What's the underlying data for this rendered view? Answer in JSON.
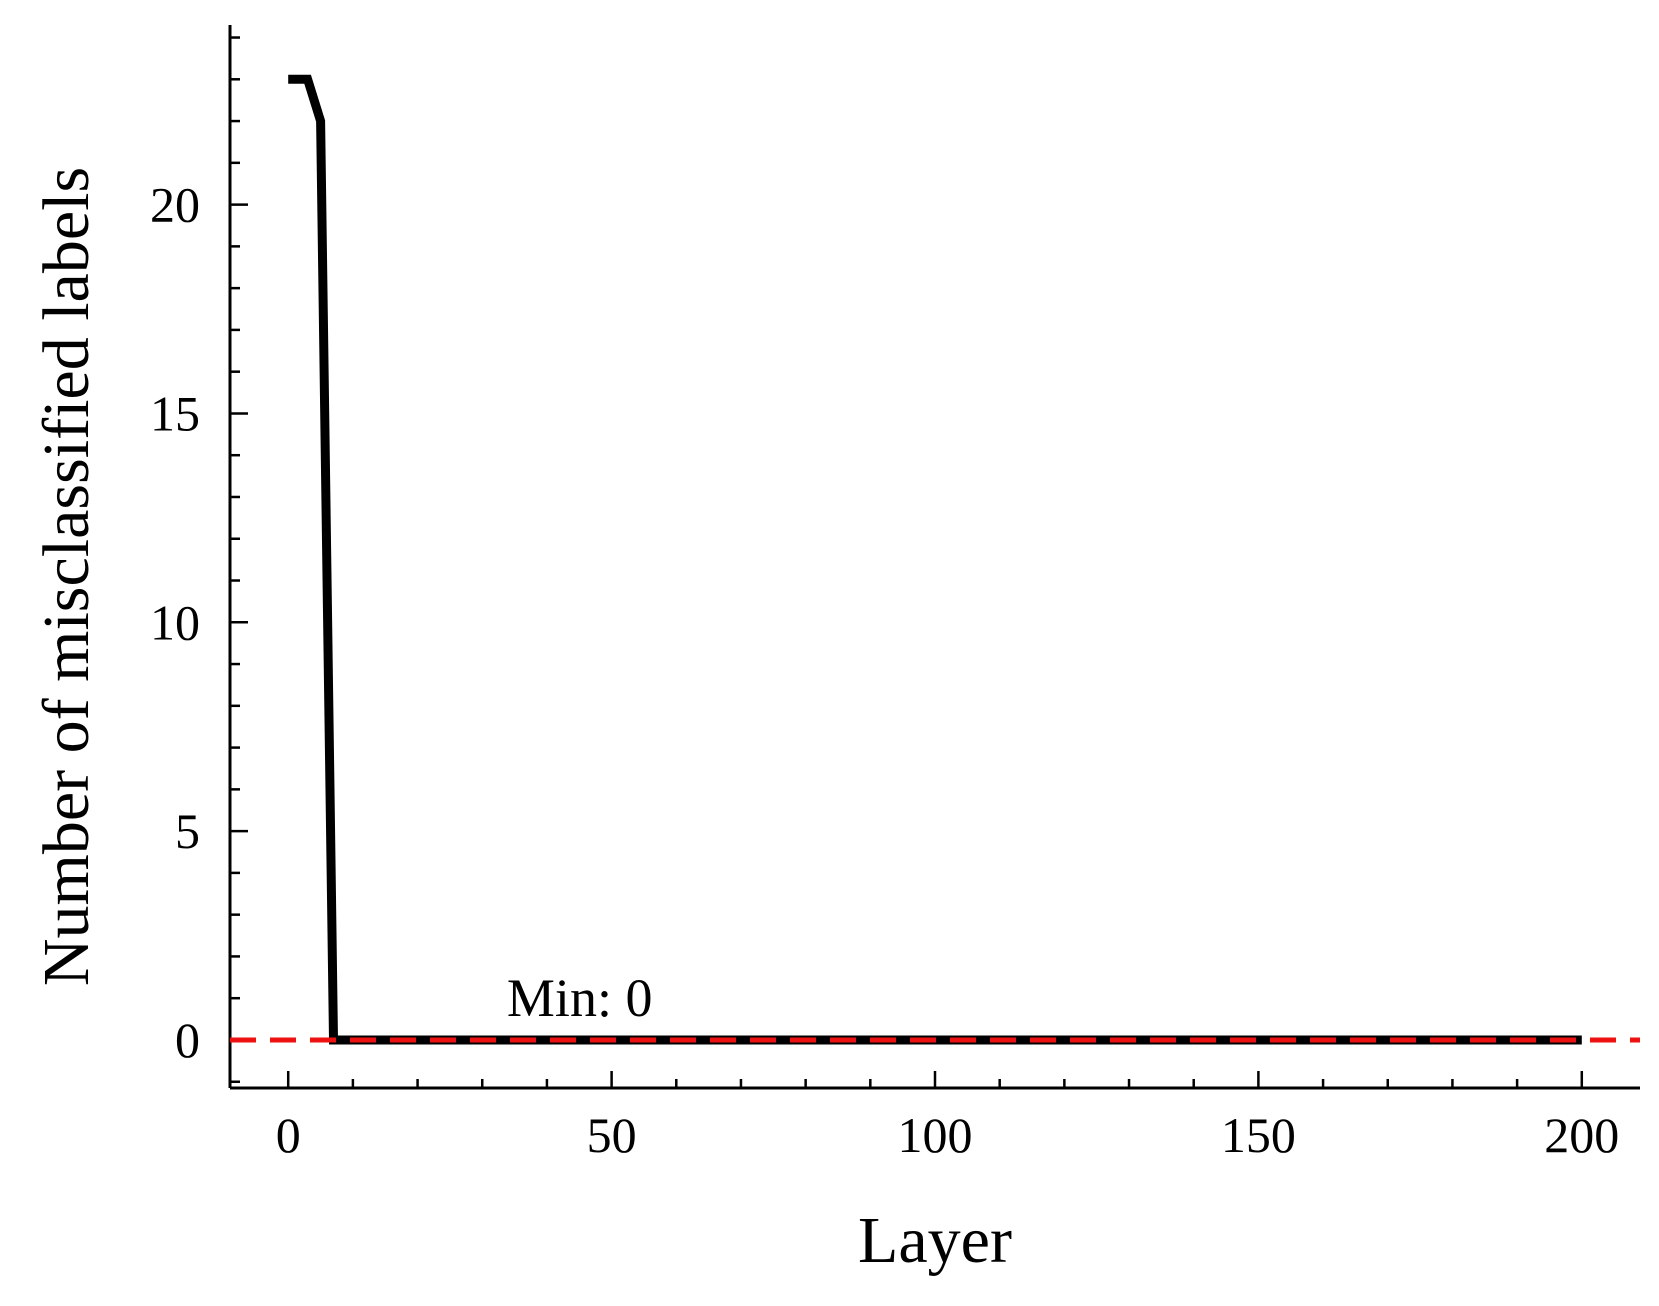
{
  "chart_data": {
    "type": "line",
    "title": "",
    "xlabel": "Layer",
    "ylabel": "Number of misclassified labels",
    "xlim": [
      -9,
      209
    ],
    "ylim": [
      -1.15,
      24.3
    ],
    "xticks": [
      0,
      50,
      100,
      150,
      200
    ],
    "yticks": [
      0,
      5,
      10,
      15,
      20
    ],
    "x_minor_step": 10,
    "y_minor_step": 1,
    "grid": false,
    "series": [
      {
        "color": "#000000",
        "x": [
          0,
          3,
          5,
          7,
          200
        ],
        "y": [
          23,
          23,
          22,
          0,
          0
        ]
      }
    ],
    "reference_line": {
      "y": 0,
      "color": "#ee1111",
      "style": "dashed"
    },
    "annotation": {
      "text": "Min: 0",
      "x": 40,
      "y": 0
    }
  }
}
